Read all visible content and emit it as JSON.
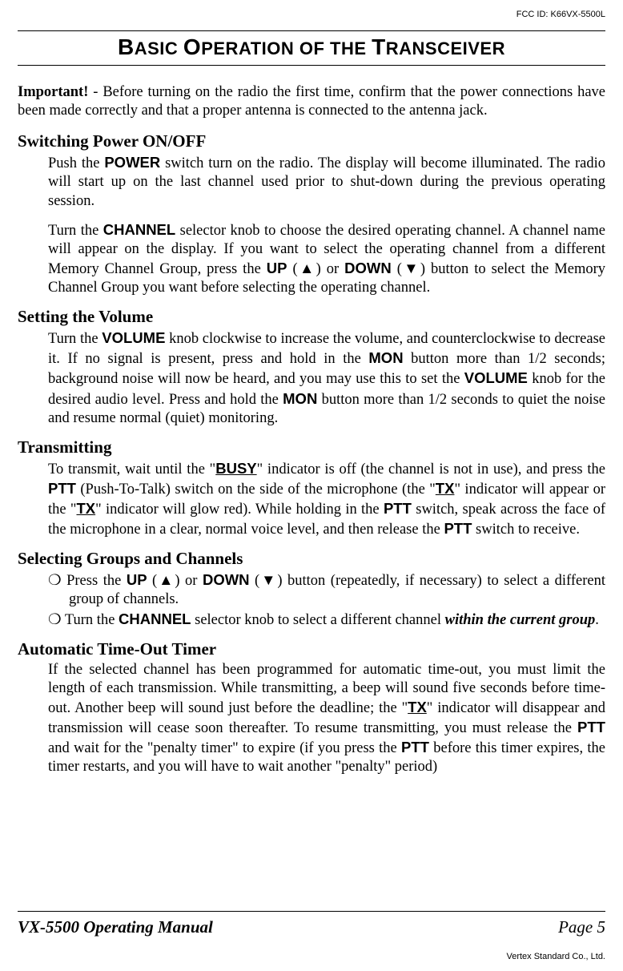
{
  "header": {
    "fcc_id": "FCC ID: K66VX-5500L",
    "title_parts": {
      "b": "B",
      "asic": "ASIC ",
      "o": "O",
      "peration_of_the": "PERATION OF THE ",
      "t": "T",
      "ransceiver": "RANSCEIVER"
    }
  },
  "intro": {
    "important": "Important!",
    "rest": " - Before turning on the radio the first time, confirm that the power connec­tions have been made correctly and that a proper antenna is connected to the antenna jack."
  },
  "sections": {
    "power": {
      "heading": "Switching Power ON/OFF",
      "p1_a": "Push the ",
      "power": "POWER",
      "p1_b": " switch turn on the radio. The display will become illuminated. The radio will start up on the last channel used prior to shut-down during the previous operating session.",
      "p2_a": "Turn the ",
      "channel": "CHANNEL",
      "p2_b": " selector knob to choose the desired operating channel. A chan­nel name will appear on the display. If you want to select the operating channel from a different Memory Channel Group, press the ",
      "up": "UP",
      "p2_c": " (▲) or ",
      "down": "DOWN",
      "p2_d": " (▼) button to select the Memory Channel Group you want before selecting the operating channel."
    },
    "volume": {
      "heading": "Setting the Volume",
      "a": "Turn the ",
      "volume": "VOLUME",
      "b": " knob clockwise to increase the volume, and counterclockwise to decrease it. If no signal is present, press and hold in the ",
      "mon": "MON",
      "c": " button more than 1/2 seconds; background noise will now be heard, and you may use this to set the ",
      "volume2": "VOL­UME",
      "d": " knob for the desired audio level. Press and hold the ",
      "mon2": "MON",
      "e": " button more than 1/2 seconds to quiet the noise and resume normal (quiet) monitoring."
    },
    "transmit": {
      "heading": "Transmitting",
      "a": "To transmit, wait until the \"",
      "busy": "BUSY",
      "b": "\" indicator is off (the channel is not in use), and press the ",
      "ptt": "PTT",
      "c": " (Push-To-Talk) switch on the side of the microphone (the \"",
      "tx": "TX",
      "d": "\" indica­tor will appear or the \"",
      "tx2": "TX",
      "e": "\" indicator will glow red). While holding in the ",
      "ptt2": "PTT",
      "f": " switch, speak across the face of the microphone in a clear, normal voice level, and then release the ",
      "ptt3": "PTT",
      "g": " switch to receive."
    },
    "groups": {
      "heading": "Selecting Groups and Channels",
      "b1_a": "❍ Press the ",
      "up": "UP",
      "b1_b": " (▲) or ",
      "down": "DOWN",
      "b1_c": " (▼) button (repeatedly, if necessary) to select a different group of channels.",
      "b2_a": "❍ Turn the ",
      "channel": "CHANNEL",
      "b2_b": " selector knob to select a different channel ",
      "b2_c": "within the current group",
      "b2_d": "."
    },
    "timeout": {
      "heading": "Automatic Time-Out Timer",
      "a": "If the selected channel has been programmed for automatic time-out, you must limit the length of each transmission. While transmitting, a beep will sound five seconds before time-out. Another beep will sound just before the deadline; the \"",
      "tx": "TX",
      "b": "\" indicator will disappear and transmission will cease soon thereafter. To resume transmitting, you must release the ",
      "ptt": "PTT",
      "c": " and wait for the \"penalty timer\" to expire (if you press the ",
      "ptt2": "PTT",
      "d": " before this timer expires, the timer restarts, and you will have to wait another \"penalty\" period)"
    }
  },
  "footer": {
    "manual": "VX-5500 Operating Manual",
    "page": "Page 5",
    "company": "Vertex Standard Co., Ltd."
  },
  "colors": {
    "text": "#000000",
    "background": "#ffffff"
  },
  "typography": {
    "body_family": "Times New Roman",
    "sans_family": "Arial",
    "body_size_pt": 14,
    "heading_size_pt": 16,
    "title_size_pt": 21
  }
}
